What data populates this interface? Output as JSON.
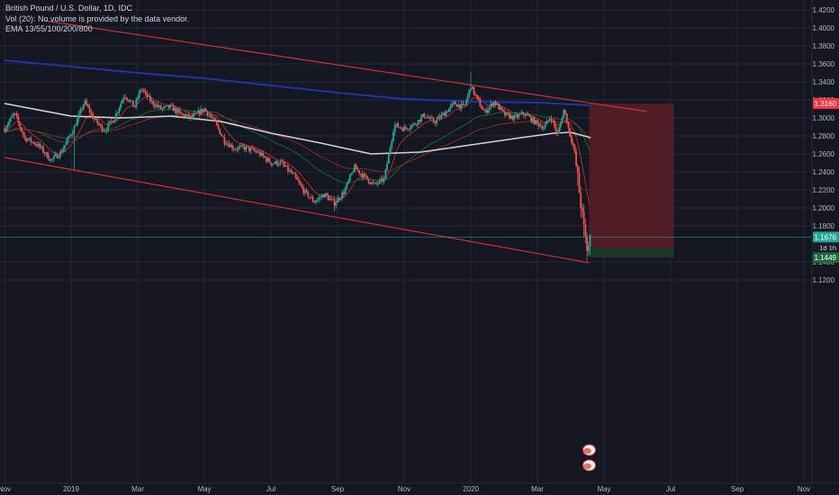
{
  "header": {
    "symbol_line": "British Pound / U.S. Dollar, 1D, IDC",
    "volume_line": "Vol (20): No volume is provided by the data vendor.",
    "ema_line": "EMA 13/55/100/200/800"
  },
  "colors": {
    "background": "#131722",
    "grid": "#242733",
    "candle_up": "#26a69a",
    "candle_down": "#ef5350",
    "channel": "#d32f2f",
    "ema_fast": "#b02a2a",
    "ema_mid": "#1f5d36",
    "ema_slow": "#8a2a1e",
    "ema_200": "#d5d2cd",
    "ema_800": "#2233a8",
    "stop_zone": "#5a1c24",
    "target_zone": "#1b3a27",
    "axis_text": "#b2b5be"
  },
  "chart_data": {
    "type": "candlestick",
    "instrument": "British Pound / U.S. Dollar",
    "interval": "1D",
    "source": "IDC",
    "x_ticks": [
      "Nov",
      "2019",
      "Mar",
      "May",
      "Jul",
      "Sep",
      "Nov",
      "2020",
      "Mar",
      "May",
      "Jul",
      "Sep",
      "Nov"
    ],
    "y_ticks": [
      "1.4200",
      "1.4000",
      "1.3800",
      "1.3600",
      "1.3400",
      "1.3200",
      "1.3000",
      "1.2800",
      "1.2600",
      "1.2400",
      "1.2200",
      "1.2000",
      "1.1800",
      "1.1400",
      "1.1200"
    ],
    "ylim": [
      1.112,
      1.426
    ],
    "x_range_months": [
      0,
      24.7
    ],
    "price_path": [
      [
        0.0,
        1.288
      ],
      [
        0.3,
        1.305
      ],
      [
        0.6,
        1.278
      ],
      [
        1.0,
        1.27
      ],
      [
        1.4,
        1.253
      ],
      [
        1.7,
        1.262
      ],
      [
        2.1,
        1.29
      ],
      [
        2.4,
        1.318
      ],
      [
        2.7,
        1.298
      ],
      [
        3.0,
        1.286
      ],
      [
        3.3,
        1.3
      ],
      [
        3.6,
        1.326
      ],
      [
        3.9,
        1.312
      ],
      [
        4.1,
        1.333
      ],
      [
        4.4,
        1.318
      ],
      [
        4.7,
        1.31
      ],
      [
        5.0,
        1.312
      ],
      [
        5.3,
        1.304
      ],
      [
        5.6,
        1.3
      ],
      [
        6.0,
        1.31
      ],
      [
        6.3,
        1.296
      ],
      [
        6.6,
        1.275
      ],
      [
        6.9,
        1.266
      ],
      [
        7.2,
        1.267
      ],
      [
        7.6,
        1.262
      ],
      [
        8.0,
        1.25
      ],
      [
        8.3,
        1.25
      ],
      [
        8.7,
        1.235
      ],
      [
        9.0,
        1.218
      ],
      [
        9.3,
        1.207
      ],
      [
        9.6,
        1.215
      ],
      [
        9.9,
        1.205
      ],
      [
        10.2,
        1.218
      ],
      [
        10.5,
        1.245
      ],
      [
        10.8,
        1.235
      ],
      [
        11.1,
        1.225
      ],
      [
        11.4,
        1.232
      ],
      [
        11.7,
        1.292
      ],
      [
        12.0,
        1.288
      ],
      [
        12.3,
        1.293
      ],
      [
        12.6,
        1.303
      ],
      [
        12.9,
        1.295
      ],
      [
        13.2,
        1.305
      ],
      [
        13.5,
        1.316
      ],
      [
        13.8,
        1.312
      ],
      [
        14.0,
        1.335
      ],
      [
        14.2,
        1.32
      ],
      [
        14.4,
        1.306
      ],
      [
        14.7,
        1.318
      ],
      [
        15.0,
        1.304
      ],
      [
        15.3,
        1.3
      ],
      [
        15.6,
        1.305
      ],
      [
        15.9,
        1.296
      ],
      [
        16.2,
        1.289
      ],
      [
        16.4,
        1.302
      ],
      [
        16.6,
        1.281
      ],
      [
        16.8,
        1.31
      ],
      [
        16.95,
        1.285
      ],
      [
        17.1,
        1.266
      ],
      [
        17.25,
        1.22
      ],
      [
        17.4,
        1.175
      ],
      [
        17.5,
        1.152
      ],
      [
        17.6,
        1.168
      ]
    ],
    "ema_levels": {
      "ema_200_path": [
        [
          0,
          1.316
        ],
        [
          2.0,
          1.302
        ],
        [
          3.5,
          1.3
        ],
        [
          5.0,
          1.302
        ],
        [
          6.5,
          1.296
        ],
        [
          8.0,
          1.283
        ],
        [
          9.5,
          1.272
        ],
        [
          11.0,
          1.26
        ],
        [
          12.5,
          1.262
        ],
        [
          14.0,
          1.27
        ],
        [
          15.5,
          1.278
        ],
        [
          16.5,
          1.283
        ],
        [
          17.0,
          1.284
        ],
        [
          17.6,
          1.278
        ]
      ],
      "ema_800_path": [
        [
          0,
          1.364
        ],
        [
          2.0,
          1.357
        ],
        [
          4.0,
          1.35
        ],
        [
          6.0,
          1.344
        ],
        [
          8.0,
          1.336
        ],
        [
          10.0,
          1.328
        ],
        [
          12.0,
          1.321
        ],
        [
          14.0,
          1.318
        ],
        [
          16.0,
          1.317
        ],
        [
          17.6,
          1.314
        ]
      ]
    },
    "channel_upper": [
      [
        1.2,
        1.408
      ],
      [
        19.3,
        1.307
      ]
    ],
    "channel_lower": [
      [
        0.0,
        1.256
      ],
      [
        17.55,
        1.139
      ]
    ],
    "position": {
      "entry": 1.1449,
      "stop": 1.316,
      "target": 1.1552,
      "start_month": 17.55,
      "end_month": 20.1
    },
    "price_labels": [
      {
        "value": 1.316,
        "text": "1.3160",
        "bg": "#f23645"
      },
      {
        "value": 1.1676,
        "text": "1.1676",
        "bg": "#26a69a"
      },
      {
        "value": 1.1552,
        "text": "1.1552",
        "bg": "#363a45"
      },
      {
        "value": 1.1449,
        "text": "1.1449",
        "bg": "#1e6b3a"
      }
    ],
    "countdown_label": "1d 1h",
    "current_price": 1.1676
  }
}
